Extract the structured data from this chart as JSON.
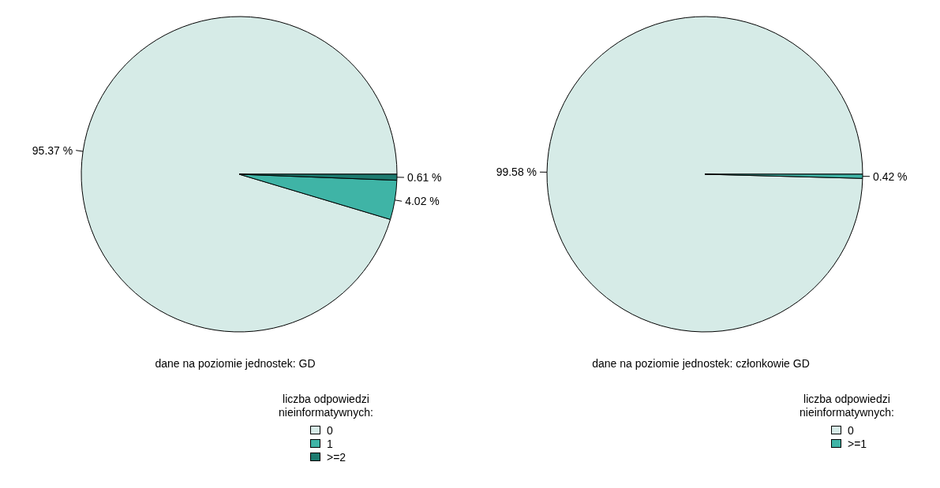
{
  "chart_data": [
    {
      "type": "pie",
      "xlabel": "dane na poziomie jednostek: GD",
      "legend_title": "liczba odpowiedzi\nnieinformatywnych:",
      "legend": "bottom",
      "categories": [
        "0",
        "1",
        ">=2"
      ],
      "values": [
        95.37,
        4.02,
        0.61
      ],
      "colors": [
        "#d6ebe7",
        "#3fb4a6",
        "#1c7a6f"
      ],
      "value_labels": [
        "95.37 %",
        "4.02 %",
        "0.61 %"
      ]
    },
    {
      "type": "pie",
      "xlabel": "dane na poziomie jednostek: członkowie GD",
      "legend_title": "liczba odpowiedzi\nnieinformatywnych:",
      "legend": "bottom",
      "categories": [
        "0",
        ">=1"
      ],
      "values": [
        99.58,
        0.42
      ],
      "colors": [
        "#d6ebe7",
        "#3fb4a6"
      ],
      "value_labels": [
        "99.58 %",
        "0.42 %"
      ]
    }
  ]
}
